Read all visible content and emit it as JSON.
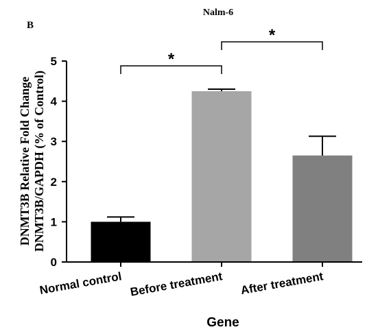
{
  "panel_label": "B",
  "chart_data": {
    "type": "bar",
    "title": "Nalm-6",
    "xlabel": "Gene",
    "ylabel_line1": "DNMT3B Relative Fold Change",
    "ylabel_line2": "DNMT3B/GAPDH (% of Control)",
    "categories": [
      "Normal control",
      "Before treatment",
      "After treatment"
    ],
    "values": [
      1.0,
      4.25,
      2.65
    ],
    "errors": [
      0.12,
      0.05,
      0.48
    ],
    "colors": [
      "#000000",
      "#a6a6a6",
      "#808080"
    ],
    "ylim": [
      0,
      5
    ],
    "yticks": [
      "0",
      "1",
      "2",
      "3",
      "4",
      "5"
    ],
    "significance": [
      {
        "from": 0,
        "to": 1,
        "label": "*"
      },
      {
        "from": 1,
        "to": 2,
        "label": "*"
      }
    ],
    "grid": false
  }
}
